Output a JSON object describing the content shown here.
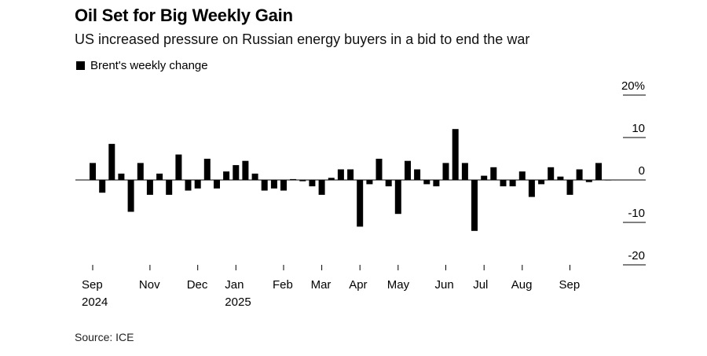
{
  "title": "Oil Set for Big Weekly Gain",
  "subtitle": "US increased pressure on Russian energy buyers in a bid to end the war",
  "source": "Source: ICE",
  "chart_data": {
    "type": "bar",
    "series": [
      {
        "name": "Brent's weekly change",
        "unit": "%",
        "values": [
          4,
          -3,
          8.5,
          1.5,
          -7.5,
          4,
          -3.5,
          1.5,
          -3.5,
          6,
          -2.5,
          -2,
          5,
          -2,
          2,
          3.5,
          4.5,
          1.5,
          -2.5,
          -2,
          -2.5,
          0.2,
          -0.3,
          -1.5,
          -3.5,
          0.5,
          2.5,
          2.5,
          -11,
          -1,
          5,
          -1.5,
          -8,
          4.5,
          2.5,
          -1,
          -1.5,
          4,
          12,
          4,
          -12,
          1,
          3,
          -1.5,
          -1.5,
          2,
          -4,
          -1,
          3,
          0.8,
          -3.5,
          2.5,
          -0.5,
          4,
          0
        ]
      }
    ],
    "x_ticks": [
      {
        "label": "Sep",
        "year": "2024",
        "week": 0
      },
      {
        "label": "Nov",
        "week": 6
      },
      {
        "label": "Dec",
        "week": 11
      },
      {
        "label": "Jan",
        "year": "2025",
        "week": 15
      },
      {
        "label": "Feb",
        "week": 20
      },
      {
        "label": "Mar",
        "week": 24
      },
      {
        "label": "Apr",
        "week": 28
      },
      {
        "label": "May",
        "week": 32
      },
      {
        "label": "Jun",
        "week": 37
      },
      {
        "label": "Jul",
        "week": 41
      },
      {
        "label": "Aug",
        "week": 45
      },
      {
        "label": "Sep",
        "week": 50
      }
    ],
    "y_ticks": [
      {
        "value": 20,
        "label": "20%"
      },
      {
        "value": 10,
        "label": "10"
      },
      {
        "value": 0,
        "label": "0"
      },
      {
        "value": -10,
        "label": "-10"
      },
      {
        "value": -20,
        "label": "-20"
      }
    ],
    "ylim": [
      -20,
      20
    ],
    "bar_color": "#000000",
    "legend_position": "top-left"
  }
}
